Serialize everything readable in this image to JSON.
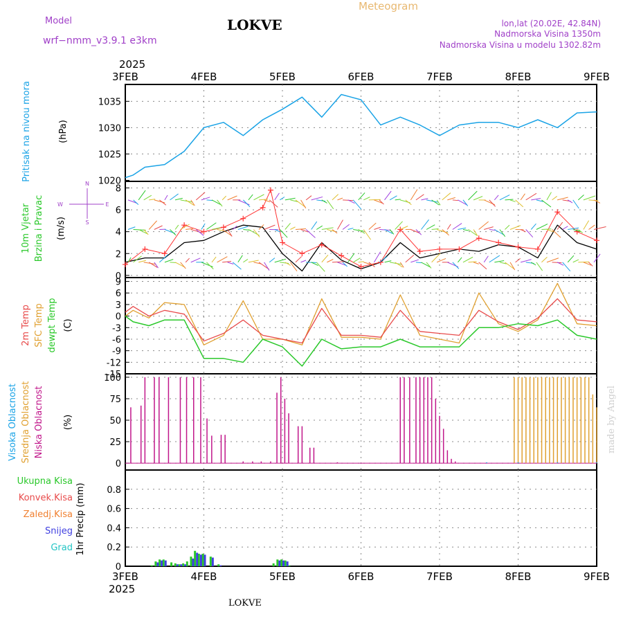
{
  "header": {
    "model_label": "Model",
    "model_name": "wrf−nmm_v3.9.1  e3km",
    "station": "LOKVE",
    "meteogram_title": "Meteogram",
    "lonlat": "lon,lat (20.02E, 42.84N)",
    "elevation": "Nadmorska Visina 1350m",
    "model_elevation": "Nadmorska Visina u modelu 1302.82m",
    "footer_station": "LOKVE",
    "watermark": "made by Angel",
    "year_top": "2025",
    "year_bottom": "2025"
  },
  "colors": {
    "pressure": "#1aa3e6",
    "temp2m": "#e84a4a",
    "sfc": "#e0a030",
    "dewpt": "#2ac82a",
    "high_cloud": "#1aa3e6",
    "mid_cloud": "#e0a030",
    "low_cloud": "#c0158a",
    "gust": "#ff3333",
    "grid": "#888888"
  },
  "chart_data": [
    {
      "type": "line",
      "panel": "pressure",
      "x_ticks": [
        "3FEB",
        "4FEB",
        "5FEB",
        "6FEB",
        "7FEB",
        "8FEB",
        "9FEB"
      ],
      "ylabel_main": "Pritisak na nivou mora",
      "ylabel_unit": "(hPa)",
      "ylim": [
        1020,
        1038
      ],
      "yticks": [
        "1020",
        "1025",
        "1030",
        "1035"
      ],
      "series": [
        {
          "name": "Pritisak na nivou mora",
          "x": [
            0,
            0.1,
            0.25,
            0.5,
            0.75,
            1.0,
            1.25,
            1.5,
            1.75,
            2.0,
            2.25,
            2.5,
            2.75,
            3.0,
            3.25,
            3.5,
            3.75,
            4.0,
            4.25,
            4.5,
            4.75,
            5.0,
            5.25,
            5.5,
            5.75,
            6.0
          ],
          "values": [
            1020.5,
            1021.0,
            1022.5,
            1023.0,
            1025.5,
            1030.0,
            1031.0,
            1028.5,
            1031.5,
            1033.5,
            1035.8,
            1032.0,
            1036.3,
            1035.3,
            1030.5,
            1032.0,
            1030.5,
            1028.5,
            1030.5,
            1031.0,
            1031.0,
            1030.0,
            1031.5,
            1030.0,
            1032.8,
            1033.0
          ]
        }
      ]
    },
    {
      "type": "line",
      "panel": "wind",
      "ylabel_main": "10m Vjetar",
      "ylabel_main2": "Brzina i Pravac",
      "ylabel_unit": "(m/s)",
      "compass_n": "N",
      "compass_s": "S",
      "compass_w": "W",
      "compass_e": "E",
      "ylim": [
        0,
        8.5
      ],
      "yticks": [
        "0",
        "2",
        "4",
        "6",
        "8"
      ],
      "series": [
        {
          "name": "10m wind speed",
          "x": [
            0,
            0.25,
            0.5,
            0.75,
            1.0,
            1.25,
            1.5,
            1.75,
            2.0,
            2.25,
            2.5,
            2.75,
            3.0,
            3.25,
            3.5,
            3.75,
            4.0,
            4.25,
            4.5,
            4.75,
            5.0,
            5.25,
            5.5,
            5.75,
            6.0
          ],
          "values": [
            1.2,
            1.6,
            1.6,
            3.0,
            3.2,
            4.0,
            4.6,
            4.4,
            2.0,
            0.4,
            3.0,
            1.4,
            0.6,
            1.2,
            3.0,
            1.6,
            2.0,
            2.4,
            2.2,
            2.8,
            2.6,
            1.6,
            4.6,
            3.0,
            2.4
          ]
        },
        {
          "name": "gust",
          "x": [
            0,
            0.25,
            0.5,
            0.75,
            1.0,
            1.25,
            1.5,
            1.75,
            1.85,
            2.0,
            2.25,
            2.5,
            2.75,
            3.0,
            3.25,
            3.5,
            3.75,
            4.0,
            4.25,
            4.5,
            4.75,
            5.0,
            5.25,
            5.5,
            5.75,
            6.0
          ],
          "values": [
            1.0,
            2.4,
            2.0,
            4.6,
            4.0,
            4.4,
            5.2,
            6.2,
            7.8,
            3.0,
            2.0,
            2.8,
            1.8,
            0.8,
            1.2,
            4.2,
            2.2,
            2.4,
            2.4,
            3.4,
            3.0,
            2.6,
            2.4,
            5.8,
            4.0,
            3.2
          ]
        }
      ]
    },
    {
      "type": "line",
      "panel": "temperature",
      "ylabel_a": "2m Temp",
      "ylabel_b": "SFC Temp",
      "ylabel_c": "dewpt Temp",
      "ylabel_unit": "(C)",
      "ylim": [
        -15,
        10
      ],
      "yticks": [
        "-15",
        "-12",
        "-9",
        "-6",
        "-3",
        "0",
        "3",
        "6",
        "9"
      ],
      "series": [
        {
          "name": "2m Temp",
          "x": [
            0,
            0.1,
            0.3,
            0.5,
            0.75,
            1.0,
            1.25,
            1.5,
            1.75,
            2.0,
            2.25,
            2.5,
            2.75,
            3.0,
            3.25,
            3.5,
            3.75,
            4.0,
            4.25,
            4.5,
            4.75,
            5.0,
            5.25,
            5.5,
            5.75,
            6.0
          ],
          "values": [
            1.0,
            2.5,
            0.0,
            1.5,
            0.5,
            -6.5,
            -4.5,
            -1.0,
            -5.0,
            -6.0,
            -7.0,
            2.0,
            -5.0,
            -5.0,
            -5.5,
            1.5,
            -4.0,
            -4.5,
            -5.0,
            1.5,
            -1.5,
            -3.5,
            -0.5,
            4.5,
            -1.0,
            -1.5
          ]
        },
        {
          "name": "SFC Temp",
          "x": [
            0,
            0.1,
            0.3,
            0.5,
            0.75,
            1.0,
            1.25,
            1.5,
            1.75,
            2.0,
            2.25,
            2.5,
            2.75,
            3.0,
            3.25,
            3.5,
            3.75,
            4.0,
            4.25,
            4.5,
            4.75,
            5.0,
            5.25,
            5.5,
            5.75,
            6.0
          ],
          "values": [
            0.0,
            1.5,
            -0.5,
            3.5,
            3.0,
            -7.5,
            -5.0,
            4.0,
            -6.0,
            -6.0,
            -7.5,
            4.5,
            -5.5,
            -5.5,
            -6.0,
            5.5,
            -5.0,
            -6.0,
            -7.0,
            6.0,
            -2.0,
            -4.0,
            -1.0,
            8.5,
            -2.0,
            -2.5
          ]
        },
        {
          "name": "dewpt Temp",
          "x": [
            0,
            0.1,
            0.3,
            0.5,
            0.75,
            1.0,
            1.25,
            1.5,
            1.75,
            2.0,
            2.25,
            2.5,
            2.75,
            3.0,
            3.25,
            3.5,
            3.75,
            4.0,
            4.25,
            4.5,
            4.75,
            5.0,
            5.25,
            5.5,
            5.75,
            6.0
          ],
          "values": [
            0.0,
            -1.5,
            -2.5,
            -1.0,
            -1.0,
            -11.0,
            -11.0,
            -12.0,
            -6.0,
            -8.0,
            -13.0,
            -6.0,
            -8.5,
            -8.0,
            -8.0,
            -6.0,
            -8.0,
            -8.0,
            -8.0,
            -3.0,
            -3.0,
            -2.0,
            -2.5,
            -1.0,
            -5.0,
            -6.0
          ]
        }
      ]
    },
    {
      "type": "bar",
      "panel": "clouds",
      "ylabel_a": "Visoka Oblacnost",
      "ylabel_b": "Srednja Oblacnost",
      "ylabel_c": "Niska Oblacnost",
      "ylabel_unit": "(%)",
      "ylim": [
        0,
        100
      ],
      "yticks": [
        "0",
        "25",
        "50",
        "75",
        "100"
      ],
      "series": [
        {
          "name": "Niska Oblacnost",
          "x": [
            0.07,
            0.2,
            0.25,
            0.37,
            0.43,
            0.55,
            0.7,
            0.78,
            0.87,
            0.96,
            1.04,
            1.1,
            1.22,
            1.27,
            1.5,
            1.62,
            1.73,
            1.85,
            1.93,
            1.98,
            2.03,
            2.08,
            2.2,
            2.25,
            2.35,
            2.4,
            2.7,
            3.5,
            3.5,
            3.55,
            3.62,
            3.7,
            3.75,
            3.8,
            3.85,
            3.9,
            3.95,
            4.0,
            4.05,
            4.1,
            4.15,
            4.2
          ],
          "values": [
            65,
            67,
            100,
            100,
            100,
            100,
            100,
            100,
            100,
            100,
            52,
            32,
            33,
            33,
            2,
            2,
            2,
            2,
            82,
            100,
            75,
            58,
            43,
            43,
            18,
            18,
            1,
            100,
            100,
            100,
            100,
            100,
            100,
            100,
            100,
            100,
            75,
            55,
            40,
            15,
            5,
            2
          ]
        },
        {
          "name": "Srednja Oblacnost",
          "x": [
            4.1,
            4.2,
            4.25,
            4.3,
            4.35,
            4.4,
            4.45,
            4.5,
            4.55,
            4.6,
            4.65,
            4.7,
            4.75,
            4.8,
            4.85,
            4.9,
            4.95,
            5.0,
            5.05,
            5.1,
            5.15,
            5.2,
            5.25,
            5.3,
            5.35,
            5.4,
            5.45,
            5.5,
            5.55,
            5.6,
            5.65,
            5.7,
            5.75,
            5.8,
            5.85,
            5.9,
            5.95,
            6.0
          ],
          "values": [
            0,
            0,
            0,
            0,
            0,
            0,
            0,
            0,
            0,
            0,
            0,
            0,
            0,
            0,
            0,
            0,
            100,
            100,
            100,
            100,
            100,
            100,
            100,
            100,
            100,
            100,
            100,
            100,
            100,
            100,
            100,
            100,
            100,
            100,
            100,
            100,
            80,
            65
          ]
        },
        {
          "name": "Visoka Oblacnost",
          "x": [
            4.6,
            5.0,
            5.5,
            6.0
          ],
          "values": [
            1,
            1,
            1,
            1
          ]
        }
      ]
    },
    {
      "type": "bar",
      "panel": "precip",
      "ylabel_unit": "1hr Precip (mm)",
      "legend": [
        "Ukupna Kisa",
        "Konvek.Kisa",
        "Zaledj.Kisa",
        "Snijeg",
        "Grad"
      ],
      "ylim": [
        0,
        1.0
      ],
      "yticks": [
        "0",
        "0.2",
        "0.4",
        "0.6",
        "0.8"
      ],
      "series": [
        {
          "name": "Ukupna Kisa",
          "x": [
            0.35,
            0.4,
            0.45,
            0.5,
            0.6,
            0.65,
            0.7,
            0.75,
            0.8,
            0.85,
            0.9,
            0.95,
            1.0,
            1.1,
            1.2,
            1.9,
            1.95,
            2.0,
            2.05,
            2.1
          ],
          "values": [
            0.01,
            0.05,
            0.07,
            0.07,
            0.04,
            0.03,
            0.02,
            0.03,
            0.05,
            0.1,
            0.16,
            0.13,
            0.13,
            0.1,
            0.02,
            0.03,
            0.07,
            0.07,
            0.06,
            0.01
          ]
        },
        {
          "name": "Snijeg",
          "x": [
            0.4,
            0.45,
            0.5,
            0.65,
            0.7,
            0.75,
            0.85,
            0.9,
            0.95,
            1.0,
            1.1,
            1.2,
            1.95,
            2.0,
            2.05
          ],
          "values": [
            0.04,
            0.06,
            0.06,
            0.02,
            0.02,
            0.02,
            0.08,
            0.14,
            0.12,
            0.12,
            0.09,
            0.01,
            0.06,
            0.06,
            0.05
          ]
        }
      ]
    }
  ]
}
